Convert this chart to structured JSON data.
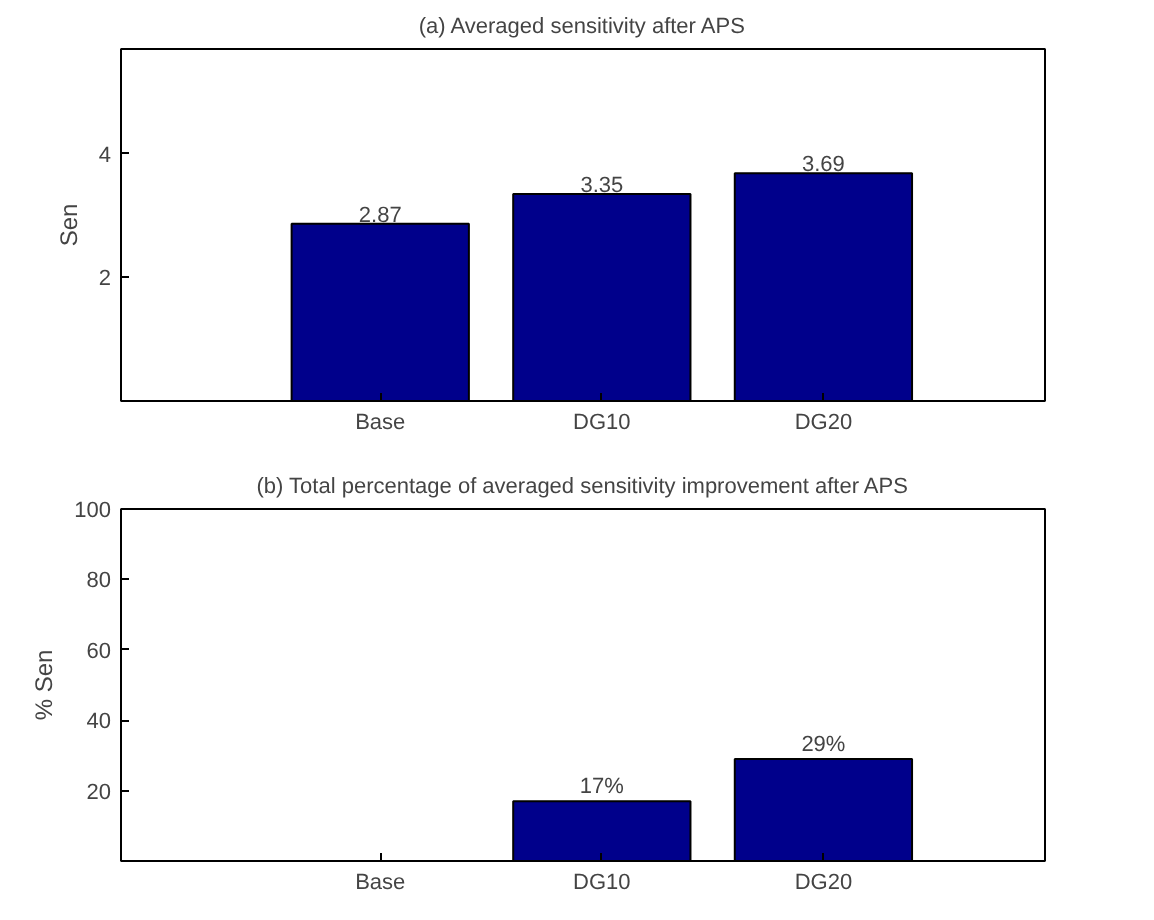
{
  "chart_data": [
    {
      "type": "bar",
      "title": "(a) Averaged sensitivity after APS",
      "ylabel": "Sen",
      "categories": [
        "Base",
        "DG10",
        "DG20"
      ],
      "values": [
        2.87,
        3.35,
        3.69
      ],
      "color": "#00008b",
      "data_labels": true,
      "ylim": [
        0,
        5.7
      ],
      "yticks": [
        2,
        4
      ],
      "grid": false
    },
    {
      "type": "bar",
      "title": "(b) Total percentage of averaged sensitivity improvement after APS",
      "ylabel": "% Sen",
      "categories": [
        "Base",
        "DG10",
        "DG20"
      ],
      "values": [
        0,
        17,
        29
      ],
      "value_labels": [
        null,
        "17%",
        "29%"
      ],
      "color": "#00008b",
      "ylim": [
        0,
        100
      ],
      "yticks": [
        20,
        40,
        60,
        80,
        100
      ],
      "grid": false
    }
  ]
}
